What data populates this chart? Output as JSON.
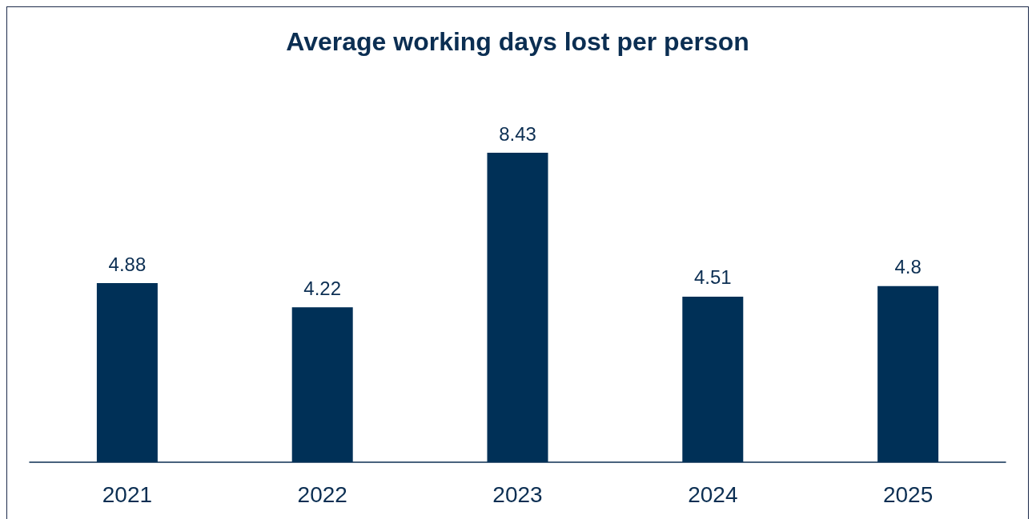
{
  "chart_data": {
    "type": "bar",
    "title": "Average working days lost per person",
    "categories": [
      "2021",
      "2022",
      "2023",
      "2024",
      "2025"
    ],
    "values": [
      4.88,
      4.22,
      8.43,
      4.51,
      4.8
    ],
    "color": "#003057",
    "data_labels": true
  }
}
